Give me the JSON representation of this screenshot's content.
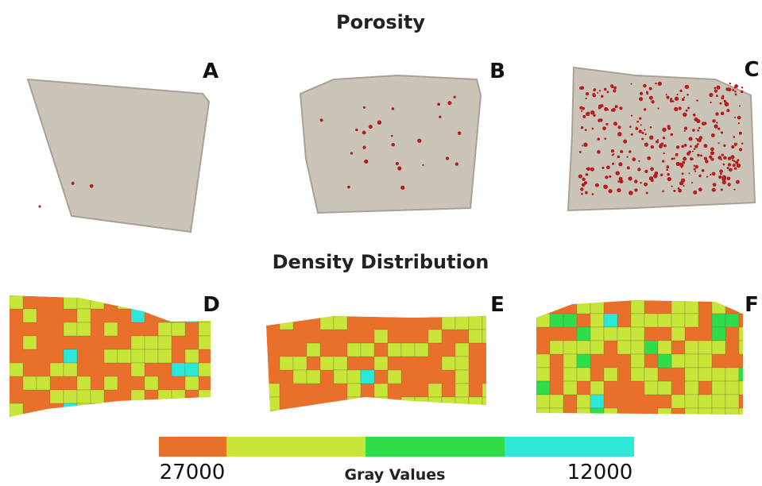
{
  "title_top": "Porosity",
  "title_bottom": "Density Distribution",
  "panels": [
    {
      "label": "A"
    },
    {
      "label": "B"
    },
    {
      "label": "C"
    },
    {
      "label": "D"
    },
    {
      "label": "E"
    },
    {
      "label": "F"
    }
  ],
  "colorbar": {
    "colors": [
      "#e8702a",
      "#c8e63a",
      "#2fdc4a",
      "#2de8d8"
    ],
    "left_label": "27000",
    "title": "Gray Values",
    "right_label": "12000"
  }
}
